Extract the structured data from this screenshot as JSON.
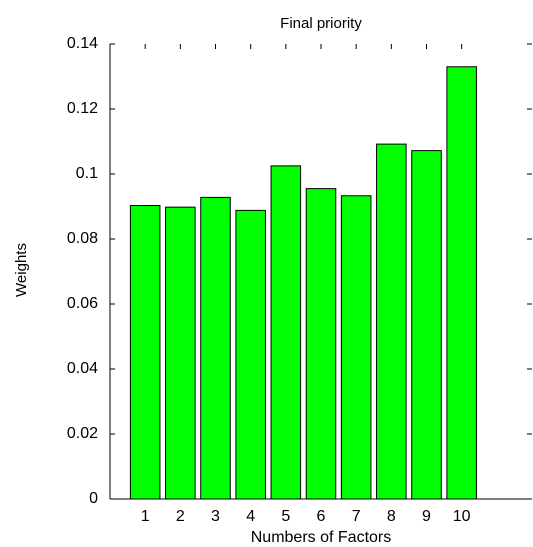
{
  "chart_data": {
    "type": "bar",
    "title": "Final priority",
    "x_label": "Numbers of Factors",
    "y_label": "Weights",
    "x": [
      1,
      2,
      3,
      4,
      5,
      6,
      7,
      8,
      9,
      10
    ],
    "values": [
      0.0903,
      0.0898,
      0.0928,
      0.0888,
      0.1025,
      0.0955,
      0.0933,
      0.1092,
      0.1072,
      0.133
    ],
    "color": "#00ff00",
    "xlim": [
      0,
      12
    ],
    "xticks": [
      1,
      2,
      3,
      4,
      5,
      6,
      7,
      8,
      9,
      10
    ],
    "ylim": [
      0,
      0.14
    ],
    "yticks": [
      0,
      0.02,
      0.04,
      0.06,
      0.08,
      0.1,
      0.12,
      0.14
    ]
  }
}
